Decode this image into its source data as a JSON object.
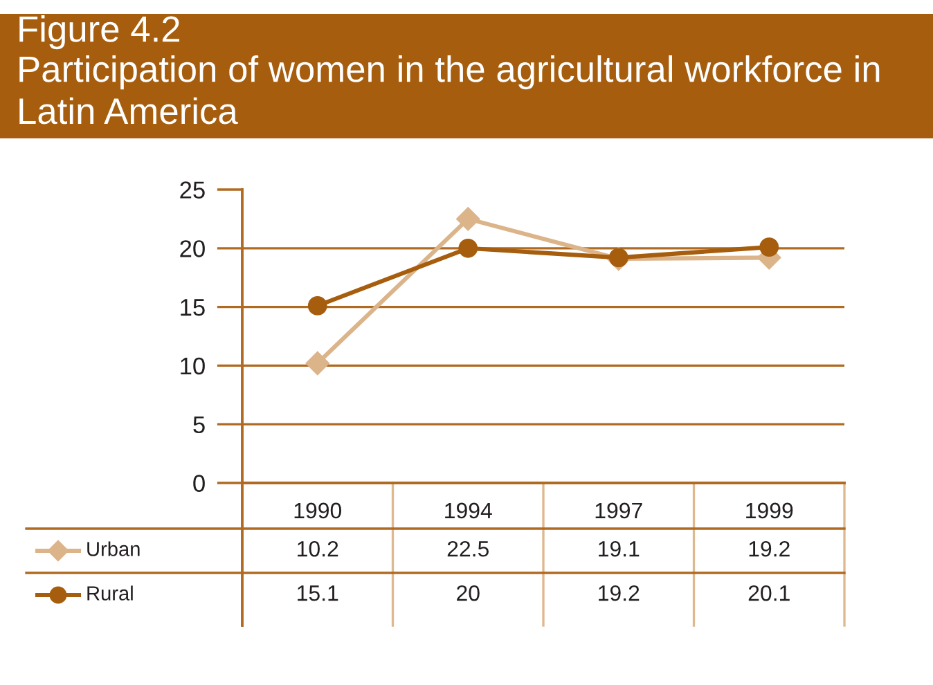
{
  "chart_data": {
    "type": "line",
    "title": "Figure 4.2",
    "subtitle": "Participation of women in the agricultural workforce in Latin America",
    "categories": [
      "1990",
      "1994",
      "1997",
      "1999"
    ],
    "series": [
      {
        "name": "Urban",
        "color": "#dcb48a",
        "marker": "diamond",
        "values": [
          10.2,
          22.5,
          19.1,
          19.2
        ],
        "value_labels": [
          "10.2",
          "22.5",
          "19.1",
          "19.2"
        ]
      },
      {
        "name": "Rural",
        "color": "#a65e0e",
        "marker": "circle",
        "values": [
          15.1,
          20,
          19.2,
          20.1
        ],
        "value_labels": [
          "15.1",
          "20",
          "19.2",
          "20.1"
        ]
      }
    ],
    "ylim": [
      0,
      25
    ],
    "yticks": [
      0,
      5,
      10,
      15,
      20,
      25
    ],
    "grid": "y",
    "legend": "bottom left",
    "line_style": "solid"
  }
}
